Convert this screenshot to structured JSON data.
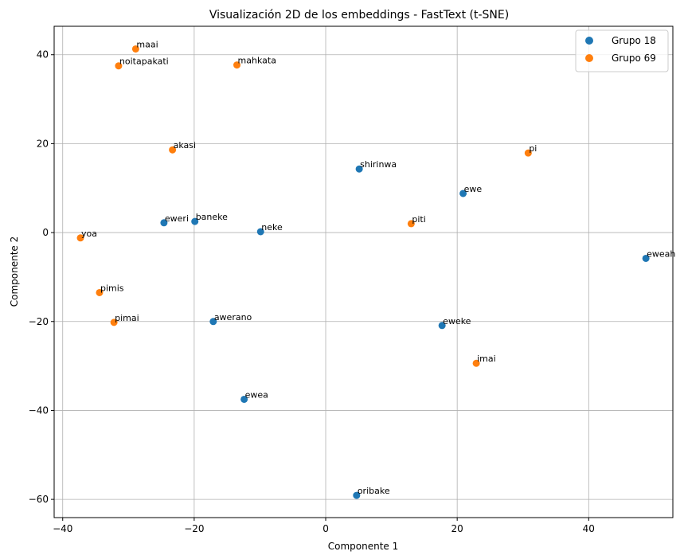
{
  "chart_data": {
    "type": "scatter",
    "title": "Visualización 2D de los embeddings - FastText (t-SNE)",
    "xlabel": "Componente 1",
    "ylabel": "Componente 2",
    "xlim": [
      -41.3,
      52.8
    ],
    "ylim": [
      -64.1,
      46.4
    ],
    "xticks": [
      -40,
      -20,
      0,
      20,
      40
    ],
    "yticks": [
      -60,
      -40,
      -20,
      0,
      20,
      40
    ],
    "grid": true,
    "legend_position": "top-right",
    "series": [
      {
        "name": "Grupo 18",
        "color": "#1f77b4",
        "points": [
          {
            "label": "shirinwa",
            "x": 5.1,
            "y": 14.3
          },
          {
            "label": "ewe",
            "x": 20.9,
            "y": 8.8
          },
          {
            "label": "eweri",
            "x": -24.6,
            "y": 2.2
          },
          {
            "label": "baneke",
            "x": -19.9,
            "y": 2.5
          },
          {
            "label": "neke",
            "x": -9.9,
            "y": 0.2
          },
          {
            "label": "eweah",
            "x": 48.7,
            "y": -5.8
          },
          {
            "label": "awerano",
            "x": -17.1,
            "y": -20.0
          },
          {
            "label": "eweke",
            "x": 17.7,
            "y": -20.9
          },
          {
            "label": "ewea",
            "x": -12.4,
            "y": -37.5
          },
          {
            "label": "oribake",
            "x": 4.7,
            "y": -59.1
          }
        ]
      },
      {
        "name": "Grupo 69",
        "color": "#ff7f0e",
        "points": [
          {
            "label": "maai",
            "x": -28.9,
            "y": 41.3
          },
          {
            "label": "noitapakati",
            "x": -31.5,
            "y": 37.5
          },
          {
            "label": "mahkata",
            "x": -13.5,
            "y": 37.7
          },
          {
            "label": "akasi",
            "x": -23.3,
            "y": 18.6
          },
          {
            "label": "pi",
            "x": 30.8,
            "y": 17.9
          },
          {
            "label": "piti",
            "x": 13.0,
            "y": 2.0
          },
          {
            "label": "yoa",
            "x": -37.3,
            "y": -1.2
          },
          {
            "label": "pimis",
            "x": -34.4,
            "y": -13.5
          },
          {
            "label": "pimai",
            "x": -32.2,
            "y": -20.2
          },
          {
            "label": "imai",
            "x": 22.9,
            "y": -29.4
          }
        ]
      }
    ]
  }
}
